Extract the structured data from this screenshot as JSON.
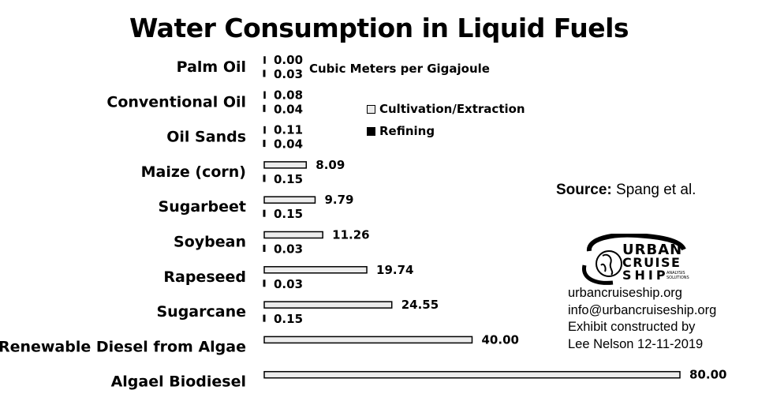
{
  "chart_data": {
    "type": "bar",
    "orientation": "horizontal",
    "title": "Water Consumption in Liquid Fuels",
    "unit_label": "Cubic Meters per Gigajoule",
    "categories": [
      "Palm Oil",
      "Conventional Oil",
      "Oil Sands",
      "Maize (corn)",
      "Sugarbeet",
      "Soybean",
      "Rapeseed",
      "Sugarcane",
      "Renewable Diesel from Algae",
      "Algael Biodiesel"
    ],
    "series": [
      {
        "name": "Cultivation/Extraction",
        "color": "#ececec",
        "values": [
          0.0,
          0.08,
          0.11,
          8.09,
          9.79,
          11.26,
          19.74,
          24.55,
          40.0,
          80.0
        ],
        "labels": [
          "0.00",
          "0.08",
          "0.11",
          "8.09",
          "9.79",
          "11.26",
          "19.74",
          "24.55",
          "40.00",
          "80.00"
        ]
      },
      {
        "name": "Refining",
        "color": "#000000",
        "values": [
          0.03,
          0.04,
          0.04,
          0.15,
          0.15,
          0.03,
          0.03,
          0.15,
          null,
          null
        ],
        "labels": [
          "0.03",
          "0.04",
          "0.04",
          "0.15",
          "0.15",
          "0.03",
          "0.03",
          "0.15",
          null,
          null
        ]
      }
    ],
    "xlim": [
      0,
      80
    ],
    "legend_position": "top-center",
    "grid": false
  },
  "source": {
    "label": "Source:",
    "text": "Spang et al."
  },
  "logo": {
    "line1": "URBAN",
    "line2": "CRUISE",
    "line3": "SHIP",
    "tag1": "ANALYSIS",
    "tag2": "SOLUTIONS"
  },
  "credits": [
    "urbancruiseship.org",
    "info@urbancruiseship.org",
    "Exhibit constructed by",
    "Lee Nelson 12-11-2019"
  ]
}
